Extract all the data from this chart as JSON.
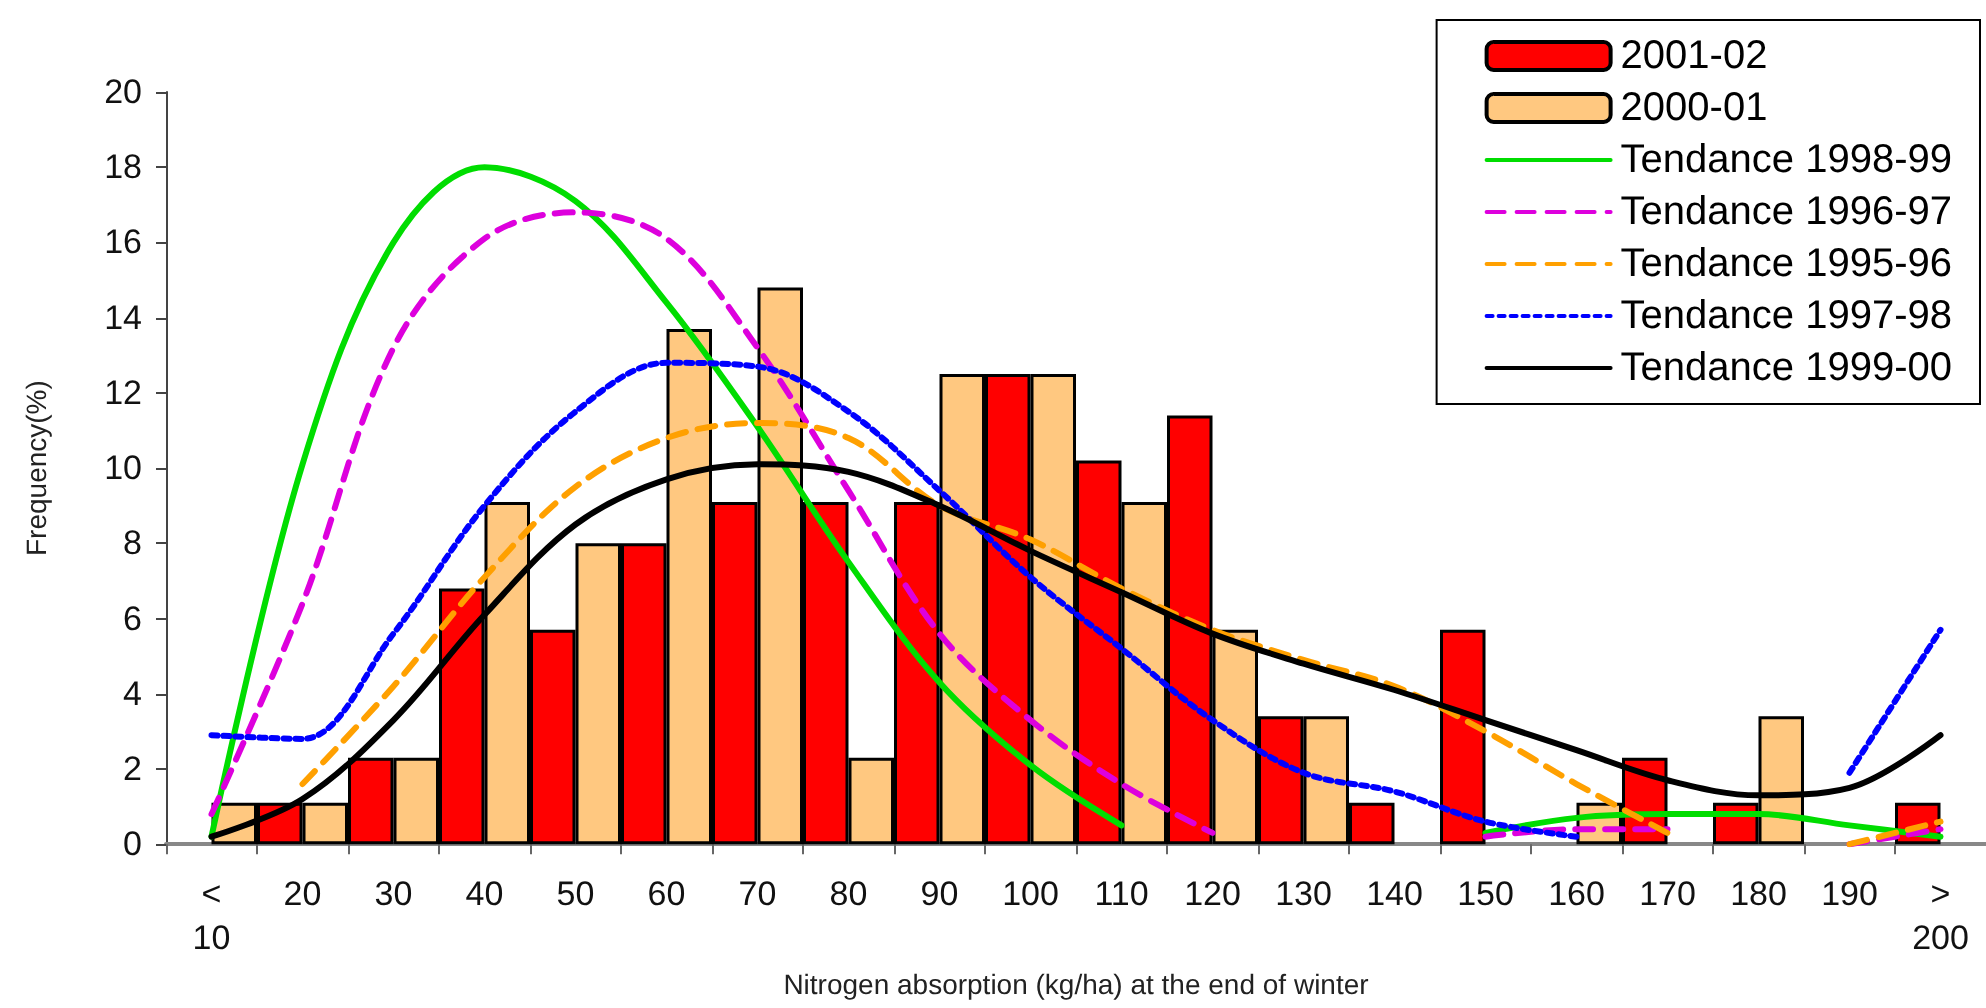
{
  "chart_data": {
    "type": "bar",
    "xlabel": "Nitrogen absorption (kg/ha) at the end of winter",
    "ylabel": "Frequency(%)",
    "categories": [
      "< 10",
      "20",
      "30",
      "40",
      "50",
      "60",
      "70",
      "80",
      "90",
      "100",
      "110",
      "120",
      "130",
      "140",
      "150",
      "160",
      "170",
      "180",
      "190",
      "> 200"
    ],
    "series": [
      {
        "name": "2001-02",
        "color": "#ff0000",
        "values": [
          0,
          1.1,
          2.3,
          6.8,
          5.7,
          8.0,
          9.1,
          9.1,
          9.1,
          12.5,
          10.2,
          11.4,
          3.4,
          1.1,
          5.7,
          0,
          2.3,
          1.1,
          0,
          1.1
        ]
      },
      {
        "name": "2000-01",
        "color": "#ffc880",
        "values": [
          1.1,
          1.1,
          2.3,
          9.1,
          8.0,
          13.7,
          14.8,
          2.3,
          12.5,
          12.5,
          9.1,
          5.7,
          3.4,
          0,
          0,
          1.1,
          0,
          3.4,
          0,
          0
        ]
      },
      {
        "name": "Tendance 1998-99",
        "type": "line",
        "line_style": "solid",
        "color": "#00dd00",
        "values": [
          0.2,
          10.1,
          16.0,
          18.0,
          17.1,
          14.4,
          11.1,
          7.5,
          4.3,
          2.1,
          0.5,
          null,
          null,
          null,
          0.3,
          0.7,
          0.8,
          0.8,
          0.5,
          0.2
        ]
      },
      {
        "name": "Tendance 1996-97",
        "type": "line",
        "line_style": "dashed",
        "color": "#dd00dd",
        "values": [
          0.8,
          6.4,
          13.2,
          16.1,
          16.8,
          16.1,
          13.2,
          9.4,
          5.6,
          3.3,
          1.6,
          0.3,
          null,
          null,
          0.2,
          0.4,
          0.4,
          null,
          0,
          0.4
        ]
      },
      {
        "name": "Tendance 1995-96",
        "type": "line",
        "line_style": "dashed",
        "color": "#ffa000",
        "values": [
          null,
          1.6,
          4.2,
          7.1,
          9.5,
          10.8,
          11.2,
          10.8,
          9.0,
          8.1,
          6.8,
          5.7,
          4.9,
          4.2,
          3.0,
          1.6,
          0.3,
          null,
          0,
          0.6
        ]
      },
      {
        "name": "Tendance 1997-98",
        "type": "line",
        "line_style": "dotted",
        "color": "#0000ff",
        "values": [
          2.9,
          2.8,
          5.6,
          9.0,
          11.5,
          12.8,
          12.7,
          11.5,
          9.4,
          7.1,
          5.2,
          3.3,
          1.9,
          1.4,
          0.6,
          0.2,
          null,
          null,
          1.9,
          5.7
        ]
      },
      {
        "name": "Tendance 1999-00",
        "type": "line",
        "line_style": "solid",
        "color": "#000000",
        "values": [
          0.2,
          1.2,
          3.3,
          6.1,
          8.5,
          9.7,
          10.1,
          9.9,
          9.0,
          7.8,
          6.7,
          5.6,
          4.8,
          4.1,
          3.3,
          2.5,
          1.7,
          1.3,
          1.5,
          2.9
        ]
      }
    ],
    "ylim": [
      0,
      20
    ],
    "yticks": [
      0,
      2,
      4,
      6,
      8,
      10,
      12,
      14,
      16,
      18,
      20
    ],
    "grid": false,
    "legend": "top right"
  }
}
